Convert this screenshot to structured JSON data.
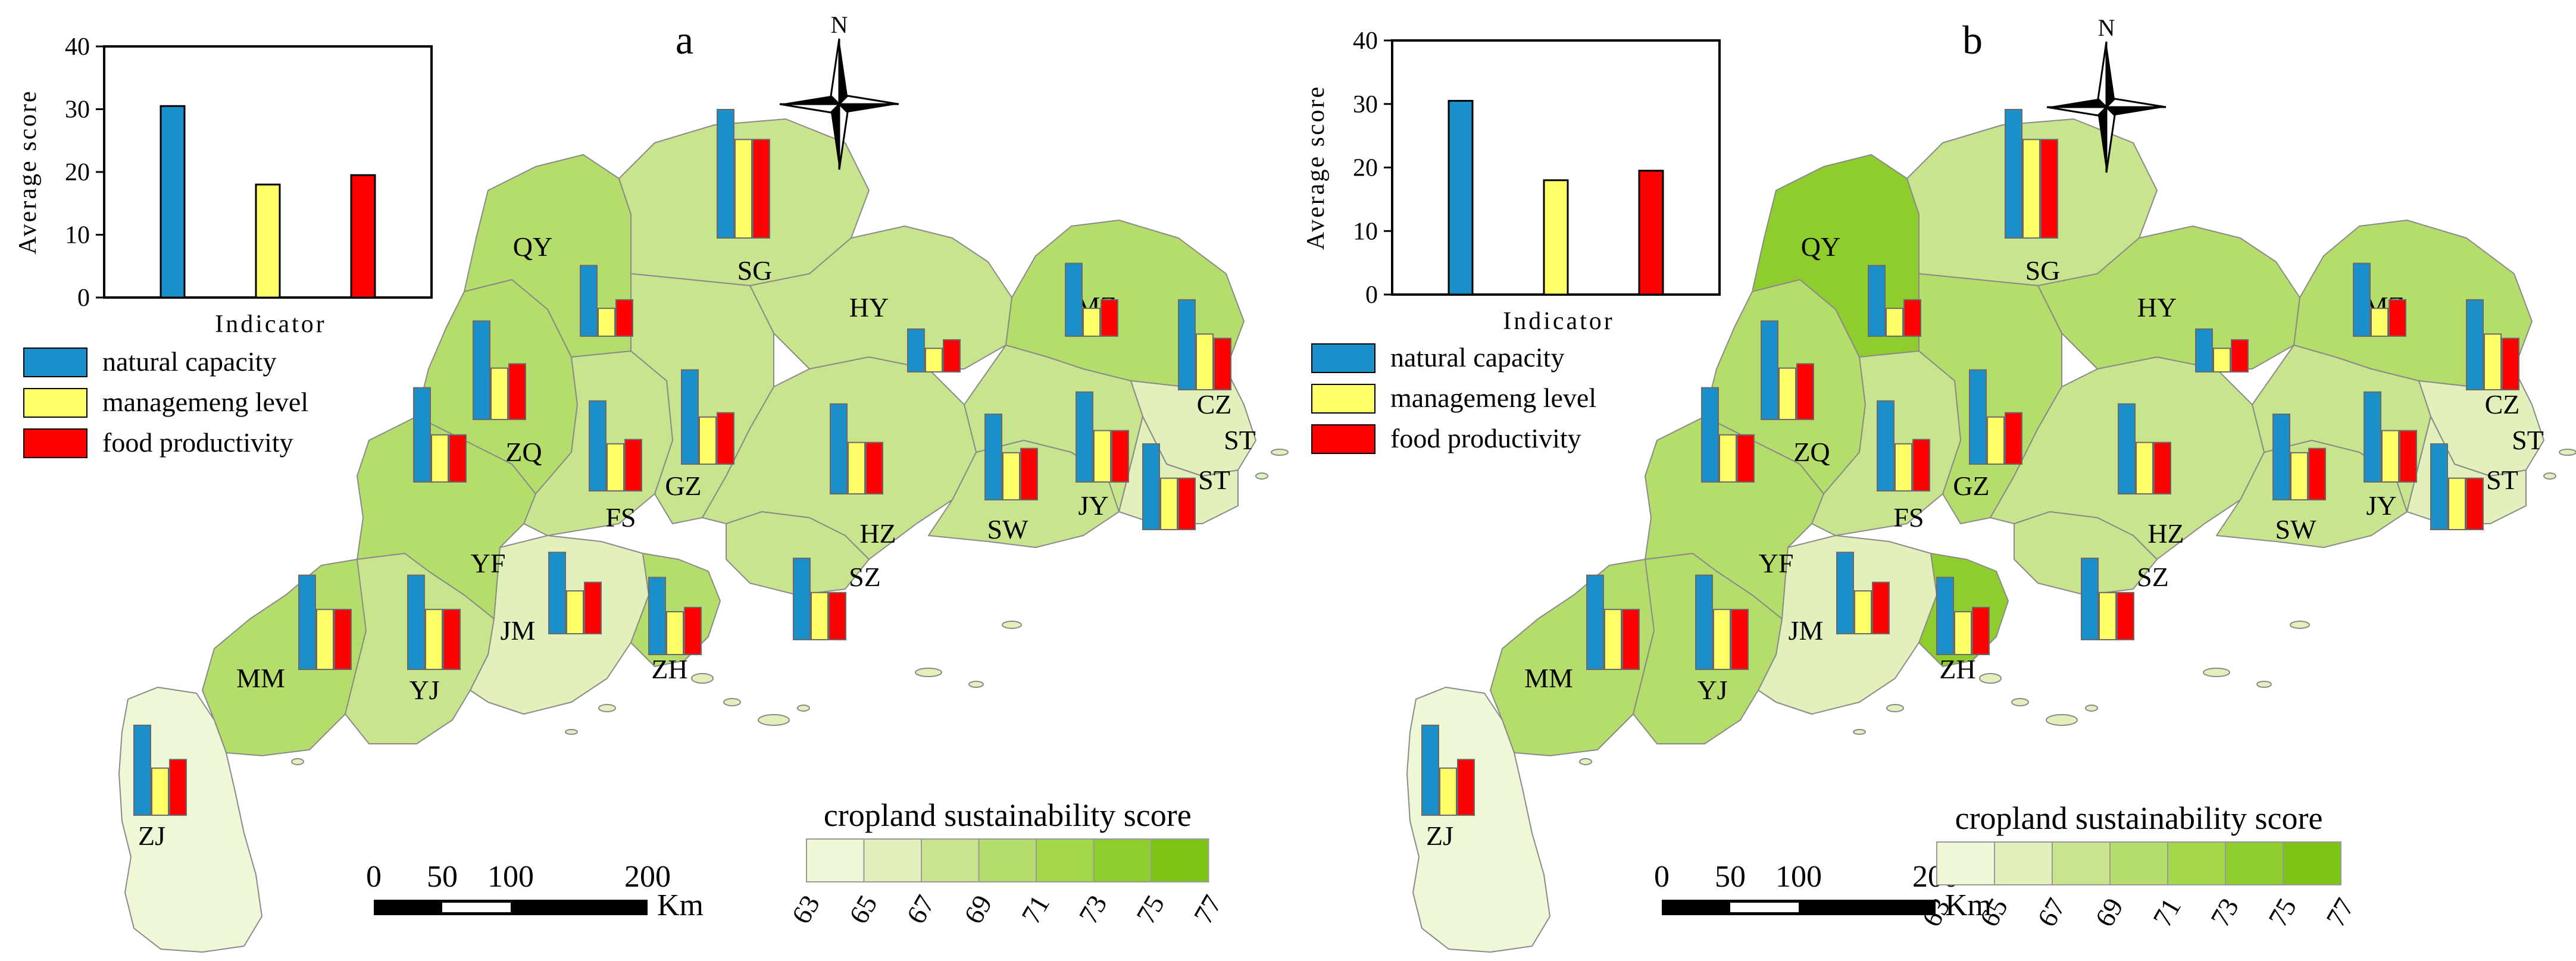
{
  "panels": [
    {
      "label": "a",
      "cities": [
        {
          "code": "QY",
          "fill": "#b4dd6c",
          "bars": [
            16.5,
            6.5,
            8.5
          ]
        },
        {
          "code": "SG",
          "fill": "#c8e58e",
          "bars": [
            30,
            23,
            23
          ]
        },
        {
          "code": "HY",
          "fill": "#c8e58e",
          "bars": [
            10,
            5.5,
            7.5
          ]
        },
        {
          "code": "MZ",
          "fill": "#b4dd6c",
          "bars": [
            17,
            6.5,
            8.5
          ]
        },
        {
          "code": "CZ",
          "fill": "#e2f1bb",
          "bars": [
            21,
            13,
            12
          ]
        },
        {
          "code": "ZQ",
          "fill": "#b4dd6c",
          "bars": [
            23,
            12,
            13
          ]
        },
        {
          "code": "GZ",
          "fill": "#c8e58e",
          "bars": [
            22,
            11,
            12
          ]
        },
        {
          "code": "FS",
          "fill": "#c8e58e",
          "bars": [
            21,
            11,
            12
          ]
        },
        {
          "code": "SW",
          "fill": "#c8e58e",
          "bars": [
            20,
            11,
            12
          ]
        },
        {
          "code": "JY",
          "fill": "#c8e58e",
          "bars": [
            21,
            12,
            12
          ]
        },
        {
          "code": "ST",
          "fill": "#e2f1bb",
          "bars": [
            20,
            12,
            12
          ]
        },
        {
          "code": "HZ",
          "fill": "#c8e58e",
          "bars": [
            21,
            12,
            12
          ]
        },
        {
          "code": "SZ",
          "fill": "#c8e58e",
          "bars": [
            19,
            11,
            11
          ]
        },
        {
          "code": "YF",
          "fill": "#b4dd6c",
          "bars": [
            22,
            11,
            11
          ]
        },
        {
          "code": "JM",
          "fill": "#e2f1bb",
          "bars": [
            19,
            10,
            12
          ]
        },
        {
          "code": "ZH",
          "fill": "#b4dd6c",
          "bars": [
            18,
            10,
            11
          ]
        },
        {
          "code": "MM",
          "fill": "#b4dd6c",
          "bars": [
            22,
            14,
            14
          ]
        },
        {
          "code": "YJ",
          "fill": "#c8e58e",
          "bars": [
            22,
            14,
            14
          ]
        },
        {
          "code": "ZJ",
          "fill": "#eef7d6",
          "bars": [
            21,
            11,
            13
          ]
        }
      ]
    },
    {
      "label": "b",
      "cities": [
        {
          "code": "QY",
          "fill": "#8fcd2f",
          "bars": [
            16.5,
            6.5,
            8.5
          ]
        },
        {
          "code": "SG",
          "fill": "#c8e58e",
          "bars": [
            30,
            23,
            23
          ]
        },
        {
          "code": "HY",
          "fill": "#b4dd6c",
          "bars": [
            10,
            5.5,
            7.5
          ]
        },
        {
          "code": "MZ",
          "fill": "#b4dd6c",
          "bars": [
            17,
            6.5,
            8.5
          ]
        },
        {
          "code": "CZ",
          "fill": "#e2f1bb",
          "bars": [
            21,
            13,
            12
          ]
        },
        {
          "code": "ZQ",
          "fill": "#b4dd6c",
          "bars": [
            23,
            12,
            13
          ]
        },
        {
          "code": "GZ",
          "fill": "#b4dd6c",
          "bars": [
            22,
            11,
            12
          ]
        },
        {
          "code": "FS",
          "fill": "#c8e58e",
          "bars": [
            21,
            11,
            12
          ]
        },
        {
          "code": "SW",
          "fill": "#c8e58e",
          "bars": [
            20,
            11,
            12
          ]
        },
        {
          "code": "JY",
          "fill": "#c8e58e",
          "bars": [
            21,
            12,
            12
          ]
        },
        {
          "code": "ST",
          "fill": "#e2f1bb",
          "bars": [
            20,
            12,
            12
          ]
        },
        {
          "code": "HZ",
          "fill": "#c8e58e",
          "bars": [
            21,
            12,
            12
          ]
        },
        {
          "code": "SZ",
          "fill": "#c8e58e",
          "bars": [
            19,
            11,
            11
          ]
        },
        {
          "code": "YF",
          "fill": "#b4dd6c",
          "bars": [
            22,
            11,
            11
          ]
        },
        {
          "code": "JM",
          "fill": "#e2f1bb",
          "bars": [
            19,
            10,
            12
          ]
        },
        {
          "code": "ZH",
          "fill": "#8fcd2f",
          "bars": [
            18,
            10,
            11
          ]
        },
        {
          "code": "MM",
          "fill": "#b4dd6c",
          "bars": [
            22,
            14,
            14
          ]
        },
        {
          "code": "YJ",
          "fill": "#b4dd6c",
          "bars": [
            22,
            14,
            14
          ]
        },
        {
          "code": "ZJ",
          "fill": "#eef7d6",
          "bars": [
            21,
            11,
            13
          ]
        }
      ]
    }
  ],
  "extra_labels": [
    "ST"
  ],
  "compass_label": "N",
  "inset_chart": {
    "type": "bar",
    "ylabel": "Average score",
    "xlabel": "Indicator",
    "ylim": [
      0,
      40
    ],
    "yticks": [
      "0",
      "10",
      "20",
      "30",
      "40"
    ],
    "series": [
      {
        "name": "natural capacity",
        "value": 30.5,
        "color": "#1a8fc9"
      },
      {
        "name": "managemeng level",
        "value": 18,
        "color": "#ffff66"
      },
      {
        "name": "food productivity",
        "value": 19.5,
        "color": "#ff0000"
      }
    ]
  },
  "legend": [
    {
      "label": "natural capacity",
      "color": "#1a8fc9"
    },
    {
      "label": "managemeng level",
      "color": "#ffff66"
    },
    {
      "label": "food productivity",
      "color": "#ff0000"
    }
  ],
  "scale_bar": {
    "ticks": [
      "0",
      "50",
      "100",
      "200"
    ],
    "unit": "Km"
  },
  "color_scale": {
    "title": "cropland sustainability score",
    "colors": [
      "#eef7d6",
      "#e2f1bb",
      "#c8e58e",
      "#b4dd6c",
      "#a3d84b",
      "#8fcd2f",
      "#7cc515"
    ],
    "ticks": [
      "63",
      "65",
      "67",
      "69",
      "71",
      "73",
      "75",
      "77"
    ]
  },
  "bar_colors": [
    "#1a8fc9",
    "#ffff66",
    "#ff0000"
  ]
}
